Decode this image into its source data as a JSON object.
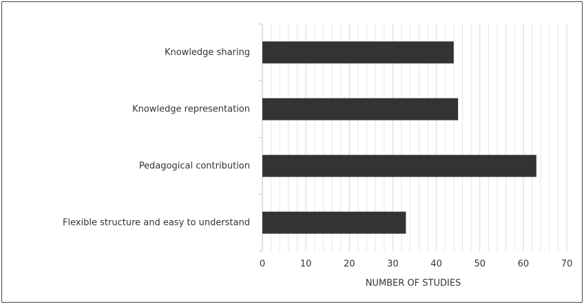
{
  "chart_data": {
    "type": "bar",
    "orientation": "horizontal",
    "categories": [
      "Knowledge sharing",
      "Knowledge representation",
      "Pedagogical contribution",
      "Flexible structure and easy to understand"
    ],
    "values": [
      44,
      45,
      63,
      33
    ],
    "color": "#333333",
    "xlabel": "NUMBER OF STUDIES",
    "xlim": [
      0,
      70
    ],
    "xticks": [
      0,
      10,
      20,
      30,
      40,
      50,
      60,
      70
    ],
    "minor_xticks": [
      0,
      2,
      4,
      6,
      8,
      10,
      12,
      14,
      16,
      18,
      20,
      22,
      24,
      26,
      28,
      30,
      32,
      34,
      36,
      38,
      40,
      42,
      44,
      46,
      48,
      50,
      52,
      54,
      56,
      58,
      60,
      62,
      64,
      66,
      68,
      70
    ],
    "grid": true
  }
}
